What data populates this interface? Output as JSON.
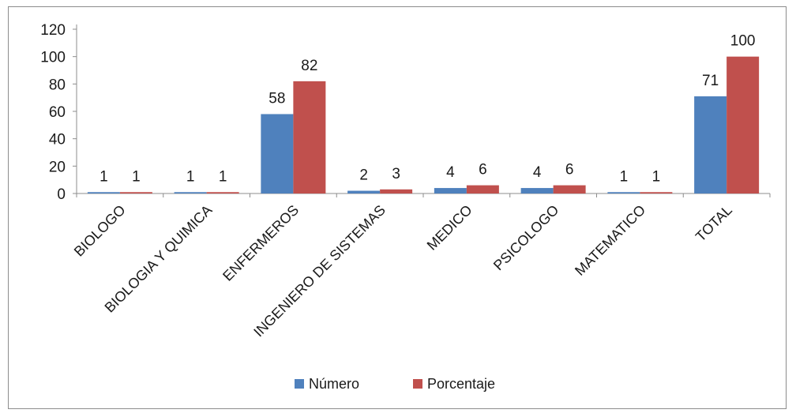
{
  "chart_data": {
    "type": "bar",
    "categories": [
      "BIOLOGO",
      "BIOLOGIA Y QUIMICA",
      "ENFERMEROS",
      "INGENIERO DE SISTEMAS",
      "MEDICO",
      "PSICOLOGO",
      "MATEMATICO",
      "TOTAL"
    ],
    "series": [
      {
        "name": "Número",
        "values": [
          1,
          1,
          58,
          2,
          4,
          4,
          1,
          71
        ],
        "color": "#4f81bd"
      },
      {
        "name": "Porcentaje",
        "values": [
          1,
          1,
          82,
          3,
          6,
          6,
          1,
          100
        ],
        "color": "#c0504d"
      }
    ],
    "ylim": [
      0,
      120
    ],
    "yticks": [
      0,
      20,
      40,
      60,
      80,
      100,
      120
    ],
    "grid": false,
    "legend_position": "bottom",
    "data_labels": true
  }
}
